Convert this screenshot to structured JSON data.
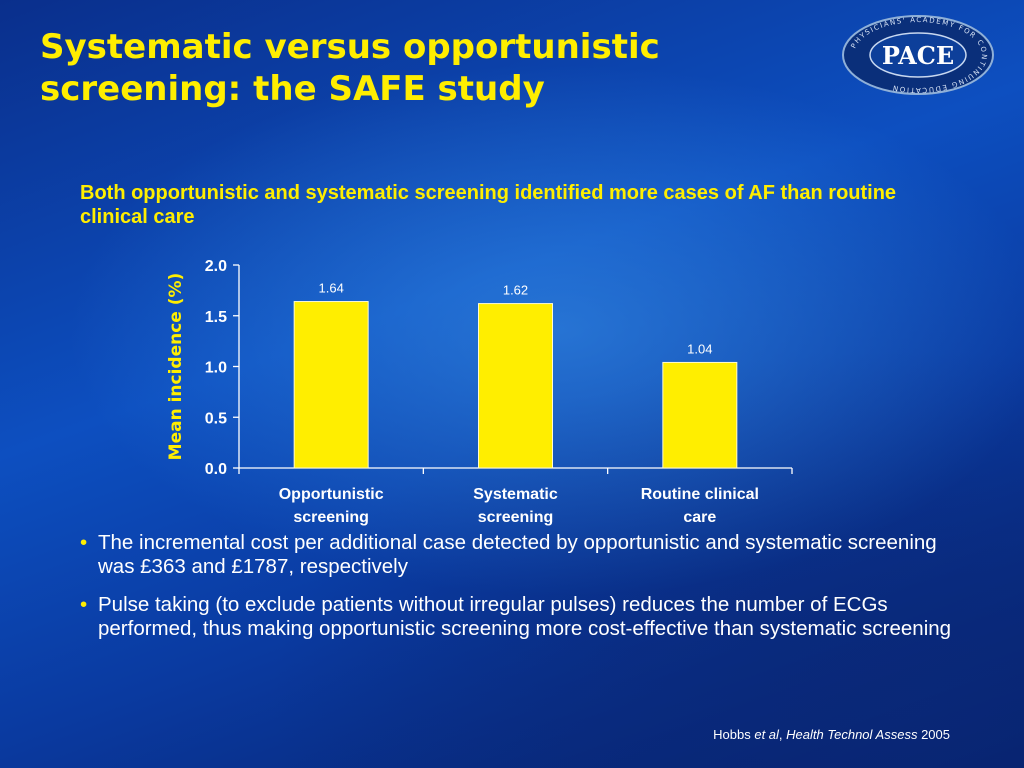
{
  "slide": {
    "title": "Systematic versus opportunistic screening: the SAFE study",
    "subtitle": "Both opportunistic and systematic screening identified more cases of AF than routine clinical care",
    "logo": {
      "main_text": "PACE",
      "ring_text": "PHYSICIANS' ACADEMY FOR CONTINUING EDUCATION",
      "colors": {
        "ring": "#0a2f7a",
        "border": "#8fb0d8",
        "text": "#ffffff"
      }
    },
    "bullets": [
      {
        "text": "The incremental cost per additional case detected by opportunistic and systematic screening was £363 and £1787, respectively"
      },
      {
        "text": "Pulse taking (to exclude patients without irregular pulses) reduces the number of ECGs performed, thus making opportunistic screening more cost-effective than systematic screening"
      }
    ],
    "citation": {
      "author": "Hobbs",
      "etal": "et al",
      "separator": ",",
      "journal": "Health Technol Assess",
      "year": "2005"
    },
    "colors": {
      "accent": "#ffee00",
      "text": "#ffffff",
      "bar": "#ffee00"
    }
  },
  "chart_data": {
    "type": "bar",
    "categories": [
      [
        "Opportunistic",
        "screening"
      ],
      [
        "Systematic",
        "screening"
      ],
      [
        "Routine clinical",
        "care"
      ]
    ],
    "values": [
      1.64,
      1.62,
      1.04
    ],
    "data_labels": [
      "1.64",
      "1.62",
      "1.04"
    ],
    "ylabel": "Mean incidence (%)",
    "ylim": [
      0,
      2.0
    ],
    "yticks": [
      0.0,
      0.5,
      1.0,
      1.5,
      2.0
    ],
    "ytick_labels": [
      "0.0",
      "0.5",
      "1.0",
      "1.5",
      "2.0"
    ],
    "grid": false,
    "legend": "none",
    "bar_color": "#ffee00"
  }
}
